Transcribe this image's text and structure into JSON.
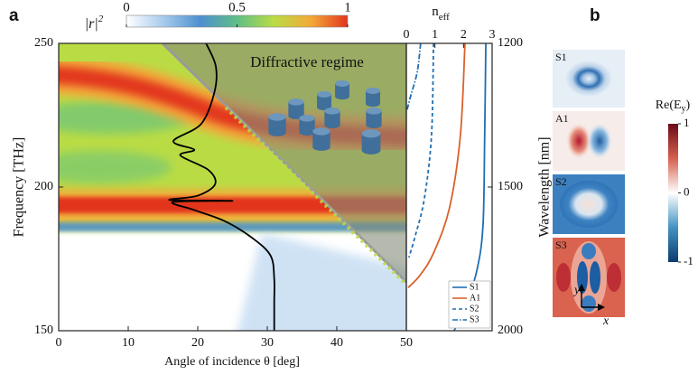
{
  "chart_data": [
    {
      "type": "heatmap",
      "panel_label": "a",
      "xlabel": "Angle of incidence θ [deg]",
      "ylabel": "Frequency [THz]",
      "xlim": [
        0,
        50
      ],
      "ylim": [
        150,
        250
      ],
      "xticks": [
        0,
        10,
        20,
        30,
        40,
        50
      ],
      "yticks": [
        150,
        200,
        250
      ],
      "annotation": "Diffractive regime",
      "colorbar": {
        "label": "|r|",
        "label_sup": "2",
        "lim": [
          0,
          1
        ],
        "ticks": [
          0,
          0.5,
          1
        ],
        "colors": [
          "#ffffff",
          "#a8cbec",
          "#4d8fd1",
          "#5fbf86",
          "#b9dc45",
          "#f4a93a",
          "#e2361c"
        ]
      },
      "series": [
        {
          "color": "#000000",
          "x": [
            21.2,
            22.6,
            22.4,
            20.5,
            16.5,
            19.5,
            17.5,
            21.5,
            22.5,
            20,
            16,
            25,
            16.5,
            19.5,
            24,
            28,
            30.5,
            31,
            31,
            31
          ],
          "values": [
            250,
            242,
            233,
            222,
            216,
            213,
            211,
            206,
            201,
            197,
            195.5,
            195.2,
            194.8,
            192,
            188,
            182,
            176,
            168,
            160,
            150
          ]
        }
      ]
    },
    {
      "type": "line",
      "xlabel": "n",
      "xlabel_sub": "eff",
      "y2label": "Wavelength [nm]",
      "xlim": [
        0,
        3
      ],
      "xticks": [
        0,
        1,
        2,
        3
      ],
      "ylim": [
        150,
        250
      ],
      "y2lim": [
        1200,
        2000
      ],
      "y2ticks": [
        1200,
        1500,
        2000
      ],
      "y2scale": "reciprocal",
      "legend": "lower right",
      "series": [
        {
          "name": "S1",
          "color": "#1f6fb2",
          "dash": "solid",
          "x": [
            2.78,
            2.74,
            2.68,
            2.46,
            2.05,
            1.67
          ],
          "values": [
            250,
            218,
            186.5,
            170.7,
            158,
            150
          ]
        },
        {
          "name": "A1",
          "color": "#d9622b",
          "dash": "solid",
          "x": [
            2.05,
            1.89,
            1.51,
            0.95,
            0.47,
            0.06
          ],
          "values": [
            250,
            218,
            192.8,
            177,
            169.2,
            165
          ]
        },
        {
          "name": "S2",
          "color": "#1f6fb2",
          "dash": "dashed",
          "x": [
            0.95,
            0.88,
            0.63,
            0.32,
            0.09
          ],
          "values": [
            250,
            218,
            196,
            183.3,
            175.5
          ]
        },
        {
          "name": "S3",
          "color": "#1f6fb2",
          "dash": "dashdot",
          "x": [
            0.5,
            0.38,
            0.16,
            0.03
          ],
          "values": [
            250,
            240,
            232,
            227
          ]
        }
      ]
    },
    {
      "type": "field_maps",
      "panel_label": "b",
      "maps": [
        {
          "label": "S1"
        },
        {
          "label": "A1"
        },
        {
          "label": "S2"
        },
        {
          "label": "S3"
        }
      ],
      "axes": {
        "y": "y",
        "x": "x"
      },
      "colorbar": {
        "label": "Re(E",
        "label_sub": "y",
        "label_end": ")",
        "lim": [
          -1,
          1
        ],
        "ticks": [
          1,
          0,
          -1
        ],
        "colors": [
          "#0b3b6e",
          "#4393c3",
          "#ffffff",
          "#d6604d",
          "#6b0a1a"
        ]
      }
    }
  ]
}
